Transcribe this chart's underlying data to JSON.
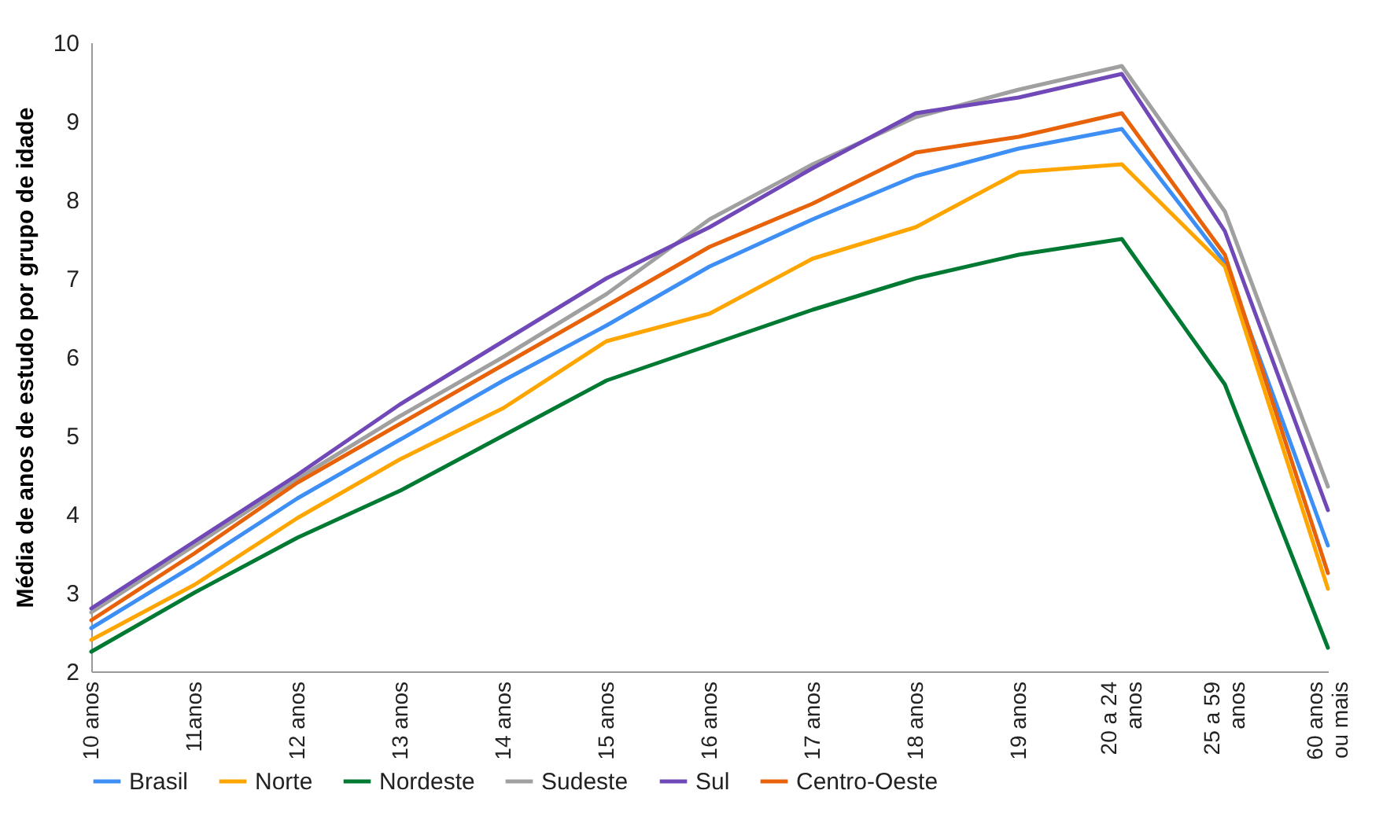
{
  "chart_data": {
    "type": "line",
    "ylabel": "Média de anos de estudo por grupo de idade",
    "categories": [
      "10 anos",
      "11anos",
      "12 anos",
      "13 anos",
      "14 anos",
      "15 anos",
      "16 anos",
      "17 anos",
      "18 anos",
      "19 anos",
      "20 a 24\nanos",
      "25 a 59\nanos",
      "60 anos\nou mais"
    ],
    "series": [
      {
        "name": "Brasil",
        "color": "#3d8ef5",
        "values": [
          2.55,
          3.35,
          4.2,
          4.95,
          5.7,
          6.4,
          7.15,
          7.75,
          8.3,
          8.65,
          8.9,
          7.2,
          3.6
        ]
      },
      {
        "name": "Norte",
        "color": "#ffa500",
        "values": [
          2.4,
          3.1,
          3.95,
          4.7,
          5.35,
          6.2,
          6.55,
          7.25,
          7.65,
          8.35,
          8.45,
          7.15,
          3.05
        ]
      },
      {
        "name": "Nordeste",
        "color": "#007a33",
        "values": [
          2.25,
          3.0,
          3.7,
          4.3,
          5.0,
          5.7,
          6.15,
          6.6,
          7.0,
          7.3,
          7.5,
          5.65,
          2.3
        ]
      },
      {
        "name": "Sudeste",
        "color": "#a0a0a0",
        "values": [
          2.75,
          3.6,
          4.45,
          5.25,
          6.0,
          6.8,
          7.75,
          8.45,
          9.05,
          9.4,
          9.7,
          7.85,
          4.35
        ]
      },
      {
        "name": "Sul",
        "color": "#7048b8",
        "values": [
          2.8,
          3.65,
          4.5,
          5.4,
          6.2,
          7.0,
          7.65,
          8.4,
          9.1,
          9.3,
          9.6,
          7.6,
          4.05
        ]
      },
      {
        "name": "Centro-Oeste",
        "color": "#e8620a",
        "values": [
          2.65,
          3.5,
          4.4,
          5.15,
          5.9,
          6.65,
          7.4,
          7.95,
          8.6,
          8.8,
          9.1,
          7.3,
          3.25
        ]
      }
    ],
    "ylim": [
      2,
      10
    ],
    "yticks": [
      2,
      3,
      4,
      5,
      6,
      7,
      8,
      9,
      10
    ],
    "grid": false,
    "legend": "bottom",
    "marker": "none",
    "line_style": "solid"
  }
}
